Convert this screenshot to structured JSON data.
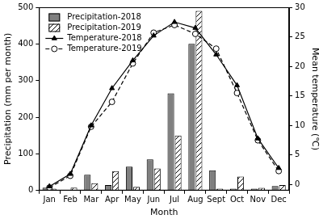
{
  "chart_data": {
    "type": "bar",
    "categories": [
      "Jan",
      "Feb",
      "Mar",
      "Apr",
      "May",
      "Jun",
      "Jul",
      "Aug",
      "Sept",
      "Oct",
      "Nov",
      "Dec"
    ],
    "x_label": "Month",
    "y_label": "Precipitation (mm per month)",
    "y2_label": "Mean temperature (℃)",
    "ylim": [
      0,
      500
    ],
    "yticks": [
      0,
      100,
      200,
      300,
      400,
      500
    ],
    "y2lim": [
      -1,
      30
    ],
    "y2ticks": [
      0,
      5,
      10,
      15,
      20,
      25,
      30
    ],
    "grid": false,
    "legend": "upper left",
    "series": [
      {
        "name": "Precipitation-2018",
        "type": "bar",
        "color": "#808080",
        "marker": "solid",
        "values": [
          8,
          2,
          43,
          15,
          65,
          85,
          265,
          400,
          55,
          5,
          5,
          12
        ]
      },
      {
        "name": "Precipitation-2019",
        "type": "bar",
        "color": "#000000",
        "marker": "hatch",
        "values": [
          5,
          8,
          20,
          53,
          10,
          60,
          150,
          490,
          5,
          38,
          7,
          15
        ]
      },
      {
        "name": "Temperature-2018",
        "type": "line",
        "axis": "y2",
        "color": "#000000",
        "marker": "triangle",
        "line_style": "solid",
        "values": [
          -0.3,
          1.8,
          10,
          16.3,
          21,
          25.2,
          27.5,
          26.5,
          22,
          16.8,
          7.8,
          2.8
        ]
      },
      {
        "name": "Temperature-2019",
        "type": "line",
        "axis": "y2",
        "color": "#000000",
        "marker": "circle",
        "line_style": "dashed",
        "values": [
          -0.5,
          1.5,
          9.8,
          14,
          20.5,
          25.7,
          27,
          25.5,
          23,
          15.5,
          7.5,
          2.3
        ]
      }
    ]
  }
}
